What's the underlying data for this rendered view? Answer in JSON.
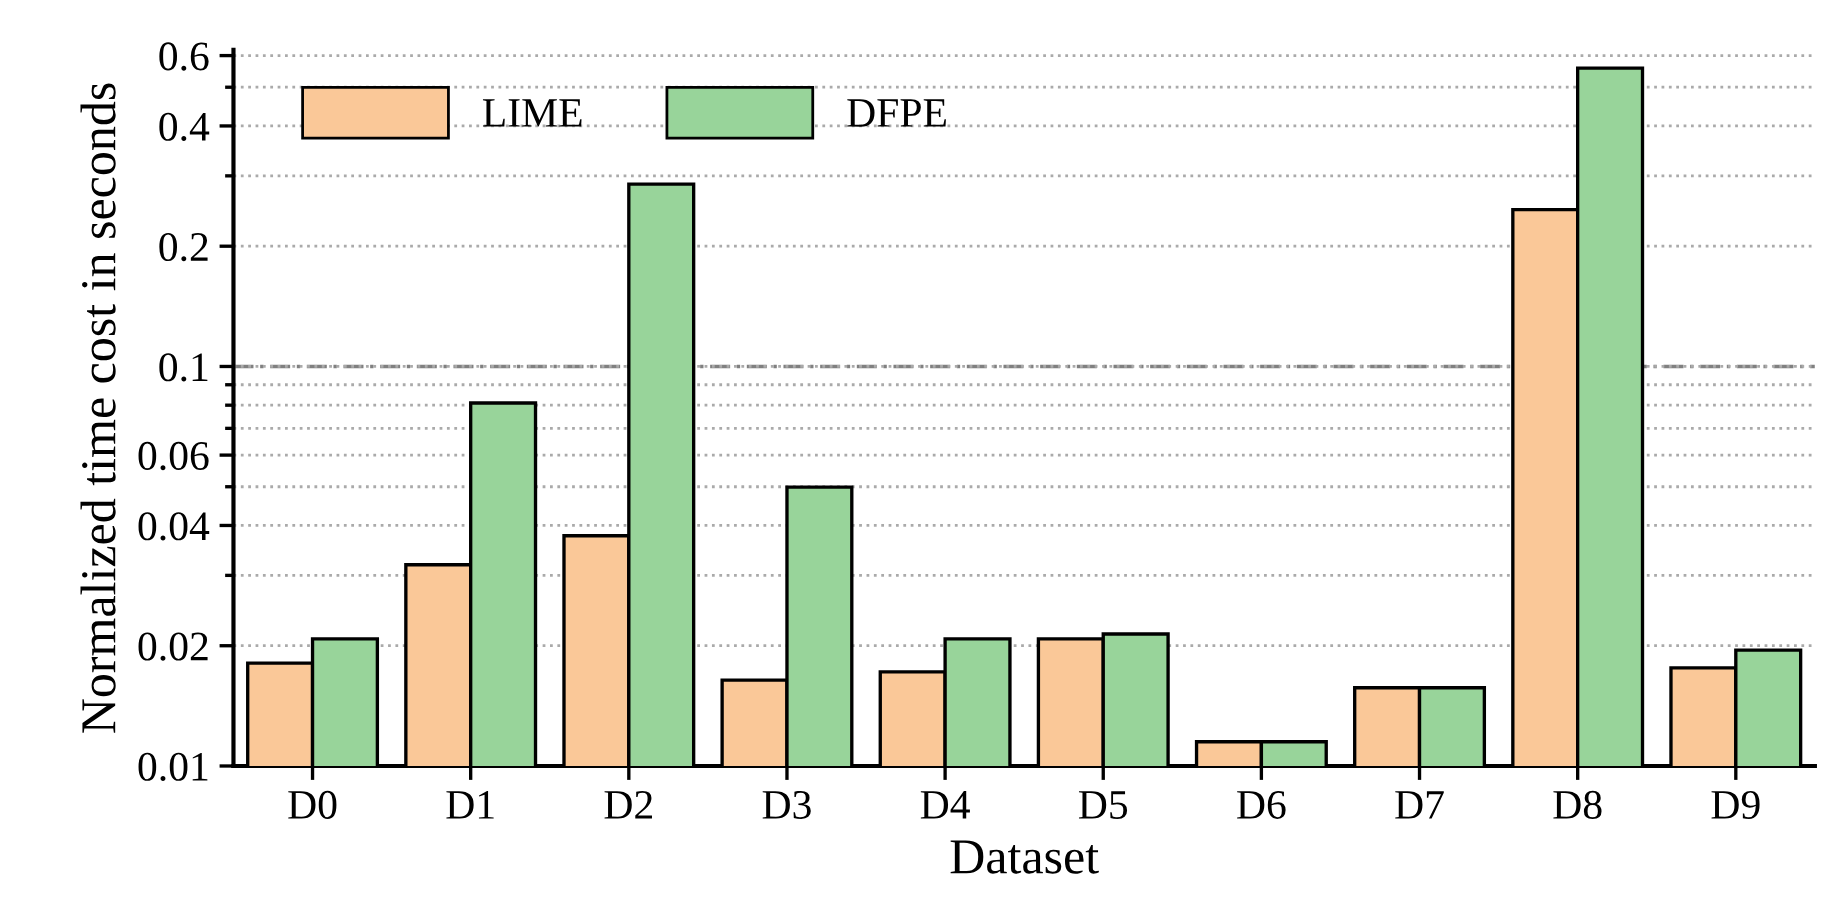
{
  "chart_data": {
    "type": "bar",
    "xlabel": "Dataset",
    "ylabel": "Normalized time cost in seconds",
    "categories": [
      "D0",
      "D1",
      "D2",
      "D3",
      "D4",
      "D5",
      "D6",
      "D7",
      "D8",
      "D9"
    ],
    "series": [
      {
        "name": "LIME",
        "color": "#fac898",
        "values": [
          0.0181,
          0.0319,
          0.0377,
          0.0164,
          0.0172,
          0.0208,
          0.0115,
          0.0157,
          0.247,
          0.0176
        ]
      },
      {
        "name": "DFPE",
        "color": "#98d49a",
        "values": [
          0.0208,
          0.081,
          0.286,
          0.0499,
          0.0208,
          0.0214,
          0.0115,
          0.0157,
          0.558,
          0.0195
        ]
      }
    ],
    "log": "y",
    "ylim": [
      0.01,
      0.62
    ],
    "yticks": [
      0.01,
      0.02,
      {
        "value": 0.03,
        "label": null
      },
      0.04,
      {
        "value": 0.05,
        "label": null
      },
      0.06,
      {
        "value": 0.07,
        "label": null
      },
      {
        "value": 0.08,
        "label": null
      },
      {
        "value": 0.09,
        "label": null
      },
      0.1,
      0.2,
      {
        "value": 0.3,
        "label": null
      },
      0.4,
      {
        "value": 0.5,
        "label": null
      },
      0.6
    ],
    "ref_lines": [
      {
        "axis": "y",
        "value": 0.1,
        "color": "#808080",
        "line_style": "dashed"
      }
    ],
    "grid": "y",
    "legend": "top left"
  }
}
